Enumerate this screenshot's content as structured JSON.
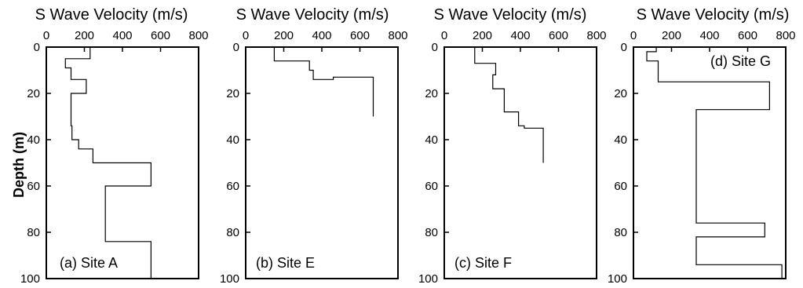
{
  "figure": {
    "ylabel": "Depth (m)"
  },
  "chart_data": [
    {
      "type": "line",
      "title": "S Wave Velocity (m/s)",
      "xlabel": "S Wave Velocity (m/s)",
      "ylabel": "Depth (m)",
      "label": "(a) Site A",
      "label_position": "bottom-left",
      "xlim": [
        0,
        800
      ],
      "ylim": [
        0,
        100
      ],
      "y_inverted": true,
      "xticks": [
        "0",
        "200",
        "400",
        "600",
        "800"
      ],
      "yticks": [
        "0",
        "20",
        "40",
        "60",
        "80",
        "100"
      ],
      "series": [
        {
          "x": [
            230,
            230,
            100,
            100,
            130,
            130,
            210,
            210,
            130,
            130,
            135,
            135,
            170,
            170,
            245,
            245,
            550,
            550,
            310,
            310,
            550,
            550
          ],
          "y": [
            0,
            5,
            5,
            9,
            9,
            14,
            14,
            20,
            20,
            34,
            34,
            40,
            40,
            44,
            44,
            50,
            50,
            60,
            60,
            84,
            84,
            100
          ]
        }
      ]
    },
    {
      "type": "line",
      "title": "S Wave Velocity (m/s)",
      "xlabel": "S Wave Velocity (m/s)",
      "label": "(b) Site E",
      "label_position": "bottom-left",
      "xlim": [
        0,
        800
      ],
      "ylim": [
        0,
        100
      ],
      "y_inverted": true,
      "xticks": [
        "0",
        "200",
        "400",
        "600",
        "800"
      ],
      "yticks": [
        "0",
        "20",
        "40",
        "60",
        "80",
        "100"
      ],
      "series": [
        {
          "x": [
            150,
            150,
            335,
            335,
            355,
            355,
            460,
            460,
            670,
            670
          ],
          "y": [
            0,
            6,
            6,
            10,
            10,
            14,
            14,
            13,
            13,
            30
          ]
        }
      ]
    },
    {
      "type": "line",
      "title": "S Wave Velocity (m/s)",
      "xlabel": "S Wave Velocity (m/s)",
      "label": "(c) Site F",
      "label_position": "bottom-left",
      "xlim": [
        0,
        800
      ],
      "ylim": [
        0,
        100
      ],
      "y_inverted": true,
      "xticks": [
        "0",
        "200",
        "400",
        "600",
        "800"
      ],
      "yticks": [
        "0",
        "20",
        "40",
        "60",
        "80",
        "100"
      ],
      "series": [
        {
          "x": [
            160,
            160,
            270,
            270,
            255,
            255,
            315,
            315,
            390,
            390,
            420,
            420,
            520,
            520
          ],
          "y": [
            0,
            7,
            7,
            12,
            12,
            18,
            18,
            28,
            28,
            34,
            34,
            35,
            35,
            50
          ]
        }
      ]
    },
    {
      "type": "line",
      "title": "S Wave Velocity (m/s)",
      "xlabel": "S Wave Velocity (m/s)",
      "label": "(d) Site G",
      "label_position": "top-right",
      "xlim": [
        0,
        800
      ],
      "ylim": [
        0,
        100
      ],
      "y_inverted": true,
      "xticks": [
        "0",
        "200",
        "400",
        "600",
        "800"
      ],
      "yticks": [
        "0",
        "20",
        "40",
        "60",
        "80",
        "100"
      ],
      "series": [
        {
          "x": [
            120,
            120,
            70,
            70,
            130,
            130,
            715,
            715,
            330,
            330,
            690,
            690,
            330,
            330,
            780,
            780
          ],
          "y": [
            0,
            2,
            2,
            6,
            6,
            15,
            15,
            27,
            27,
            76,
            76,
            82,
            82,
            94,
            94,
            100
          ]
        }
      ]
    }
  ]
}
